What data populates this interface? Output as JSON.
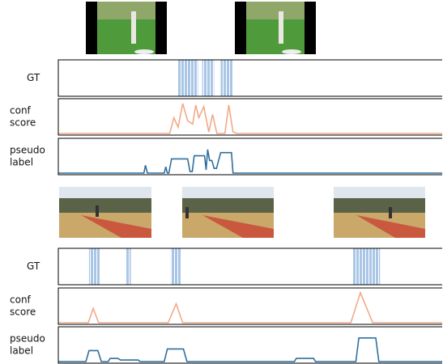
{
  "panels": [
    {
      "gt": {
        "label": "GT",
        "color": "#a9c6e6",
        "intervals": [
          [
            31.2,
            36.4
          ],
          [
            37.5,
            40.6
          ],
          [
            42.3,
            45.5
          ]
        ]
      },
      "conf": {
        "label": [
          "conf",
          "score"
        ],
        "color": "#f2a98a",
        "points": [
          [
            0,
            0
          ],
          [
            29,
            0
          ],
          [
            30.1,
            0.5
          ],
          [
            31.2,
            0.2
          ],
          [
            32.4,
            0.95
          ],
          [
            33.7,
            0.4
          ],
          [
            35,
            0.3
          ],
          [
            35.8,
            0.9
          ],
          [
            36.6,
            0.5
          ],
          [
            37.9,
            0.85
          ],
          [
            39.2,
            0.05
          ],
          [
            40.2,
            0.6
          ],
          [
            41.3,
            0
          ],
          [
            43.4,
            0
          ],
          [
            44.4,
            0.9
          ],
          [
            45.5,
            0.05
          ],
          [
            46.5,
            0
          ],
          [
            100,
            0
          ]
        ]
      },
      "pseudo": {
        "label": [
          "pseudo",
          "label"
        ],
        "color": "#2e6f9e",
        "points": [
          [
            0,
            0
          ],
          [
            22.3,
            0
          ],
          [
            22.7,
            0.25
          ],
          [
            23.2,
            0
          ],
          [
            27.6,
            0
          ],
          [
            28,
            0.2
          ],
          [
            28.4,
            0
          ],
          [
            28.8,
            0
          ],
          [
            29.5,
            0.45
          ],
          [
            33.7,
            0.45
          ],
          [
            34.3,
            0.05
          ],
          [
            34.9,
            0.05
          ],
          [
            35.4,
            0.55
          ],
          [
            38.1,
            0.55
          ],
          [
            38.5,
            0.1
          ],
          [
            38.9,
            0.75
          ],
          [
            39.4,
            0.4
          ],
          [
            40,
            0.4
          ],
          [
            40.6,
            0.15
          ],
          [
            41.2,
            0.15
          ],
          [
            42.3,
            0.65
          ],
          [
            45.1,
            0.65
          ],
          [
            45.5,
            0
          ],
          [
            100,
            0
          ]
        ]
      }
    },
    {
      "gt": {
        "label": "GT",
        "color": "#a9c6e6",
        "intervals": [
          [
            8.0,
            10.9
          ],
          [
            17.5,
            18.9
          ],
          [
            29.3,
            32.0
          ],
          [
            76.8,
            83.8
          ]
        ]
      },
      "conf": {
        "label": [
          "conf",
          "score"
        ],
        "color": "#f2a98a",
        "points": [
          [
            0,
            0
          ],
          [
            7.8,
            0
          ],
          [
            9.1,
            0.45
          ],
          [
            10.5,
            0
          ],
          [
            28.6,
            0
          ],
          [
            30.7,
            0.6
          ],
          [
            32.4,
            0
          ],
          [
            76.2,
            0
          ],
          [
            78.7,
            0.95
          ],
          [
            81.9,
            0
          ],
          [
            100,
            0
          ]
        ]
      },
      "pseudo": {
        "label": [
          "pseudo",
          "label"
        ],
        "color": "#2e6f9e",
        "points": [
          [
            0,
            0
          ],
          [
            7.2,
            0
          ],
          [
            8,
            0.35
          ],
          [
            10.3,
            0.35
          ],
          [
            11.2,
            0
          ],
          [
            13,
            0
          ],
          [
            13.5,
            0.1
          ],
          [
            15.5,
            0.1
          ],
          [
            16.2,
            0.05
          ],
          [
            20.8,
            0.05
          ],
          [
            21.3,
            0
          ],
          [
            27.6,
            0
          ],
          [
            28.4,
            0.4
          ],
          [
            32.6,
            0.4
          ],
          [
            33.5,
            0
          ],
          [
            61.5,
            0
          ],
          [
            62,
            0.1
          ],
          [
            66.5,
            0.1
          ],
          [
            67,
            0
          ],
          [
            77.5,
            0
          ],
          [
            78.3,
            0.75
          ],
          [
            82.7,
            0.75
          ],
          [
            83.5,
            0
          ],
          [
            100,
            0
          ]
        ]
      }
    }
  ]
}
